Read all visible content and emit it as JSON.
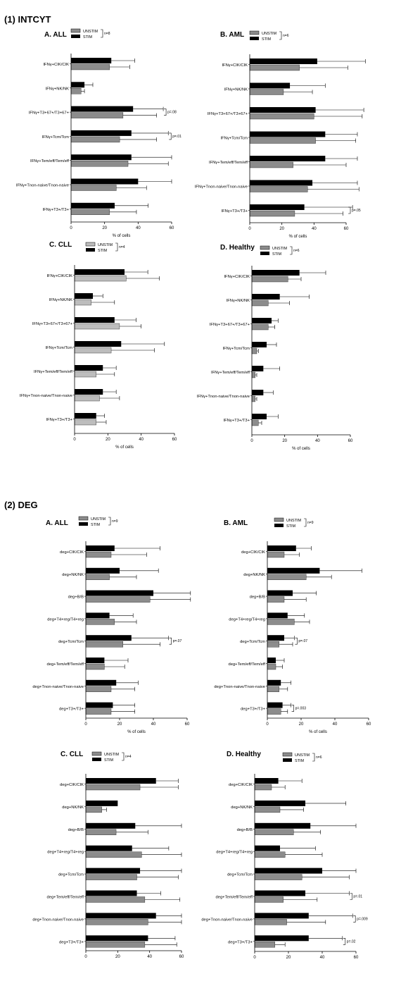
{
  "sections": [
    {
      "title": "(1) INTCYT"
    },
    {
      "title": "(2) DEG"
    }
  ],
  "colors": {
    "stim": "#000000",
    "unstim": "#8c8c8c",
    "unstim_light": "#bdbdbd"
  },
  "chart_data": [
    {
      "type": "bar",
      "section": "(1) INTCYT",
      "title": "A. ALL",
      "legend": {
        "unstim": "UNSTIM",
        "stim": "STIM",
        "n": "n=8"
      },
      "categories": [
        "IFNγ+CIK/CIK",
        "IFNγ+NK/NK",
        "IFNγ+T3+67+/T3+67+",
        "IFNγ+Tcm/Tcm",
        "IFNγ+Tem/eff/Tem/eff",
        "IFNγ+Tnon-naive/Tnon-naive",
        "IFNγ+T3+/T3+"
      ],
      "series": [
        {
          "name": "STIM",
          "values": [
            24,
            8,
            37,
            36,
            36,
            40,
            26
          ],
          "errors": [
            14,
            5,
            18,
            22,
            24,
            20,
            20
          ]
        },
        {
          "name": "UNSTIM",
          "values": [
            23,
            6,
            31,
            29,
            34,
            27,
            23
          ],
          "errors": [
            12,
            2,
            20,
            22,
            24,
            18,
            16
          ]
        }
      ],
      "pvalues": [
        {
          "row": 2,
          "label": "p=.08"
        },
        {
          "row": 3,
          "label": "p=.01"
        }
      ],
      "xlabel": "% of cells",
      "xticks": [
        0,
        20,
        40,
        60
      ],
      "xlim": [
        0,
        60
      ]
    },
    {
      "type": "bar",
      "section": "(1) INTCYT",
      "title": "B. AML",
      "legend": {
        "unstim": "UNSTIM",
        "stim": "STIM",
        "n": "n=6"
      },
      "categories": [
        "IFNγ+CIK/CIK",
        "IFNγ+NK/NK",
        "IFNγ+T3+67+/T3+67+",
        "IFNγ+Tcm/Tcm",
        "IFNγ+Tem/eff/Tem/eff",
        "IFNγ+Tnon-naive/Tnon-naive",
        "IFNγ+T3+/T3+"
      ],
      "series": [
        {
          "name": "STIM",
          "values": [
            42,
            25,
            41,
            47,
            47,
            39,
            34
          ],
          "errors": [
            30,
            22,
            30,
            20,
            20,
            28,
            30
          ]
        },
        {
          "name": "UNSTIM",
          "values": [
            31,
            21,
            40,
            41,
            27,
            36,
            28
          ],
          "errors": [
            30,
            18,
            30,
            25,
            33,
            32,
            30
          ]
        }
      ],
      "pvalues": [
        {
          "row": 6,
          "label": "p=.05"
        }
      ],
      "xlabel": "% of cells",
      "xticks": [
        0,
        20,
        40,
        60
      ],
      "xlim": [
        0,
        60
      ]
    },
    {
      "type": "bar",
      "section": "(1) INTCYT",
      "title": "C. CLL",
      "legend": {
        "unstim": "UNSTIM",
        "stim": "STIM",
        "n": "n=4"
      },
      "categories": [
        "IFNγ+CIK/CIK",
        "IFNγ+NK/NK",
        "IFNγ+T3+67+/T3+67+",
        "IFNγ+Tcm/Tcm",
        "IFNγ+Tem/eff/Tem/eff",
        "IFNγ+Tnon-naive/Tnon-naive",
        "IFNγ+T3+/T3+"
      ],
      "series": [
        {
          "name": "STIM",
          "values": [
            30,
            11,
            24,
            28,
            17,
            17,
            13
          ],
          "errors": [
            14,
            6,
            13,
            26,
            8,
            8,
            5
          ]
        },
        {
          "name": "UNSTIM",
          "values": [
            31,
            10,
            27,
            22,
            13,
            15,
            13
          ],
          "errors": [
            20,
            14,
            13,
            26,
            11,
            12,
            6
          ]
        }
      ],
      "pvalues": [],
      "xlabel": "% of cells",
      "xticks": [
        0,
        20,
        40,
        60
      ],
      "xlim": [
        0,
        60
      ]
    },
    {
      "type": "bar",
      "section": "(1) INTCYT",
      "title": "D. Healthy",
      "legend": {
        "unstim": "UNSTIM",
        "stim": "STIM",
        "n": "n=6"
      },
      "categories": [
        "IFNγ+CIK/CIK",
        "IFNγ+NK/NK",
        "IFNγ+T3+67+/T3+67+",
        "IFNγ+Tcm/Tcm",
        "IFNγ+Tem/eff/Tem/eff",
        "IFNγ+Tnon-naive/Tnon-naive",
        "IFNγ+T3+/T3+"
      ],
      "series": [
        {
          "name": "STIM",
          "values": [
            29,
            17,
            12,
            9,
            7,
            7,
            9
          ],
          "errors": [
            16,
            18,
            4,
            6,
            10,
            6,
            7
          ]
        },
        {
          "name": "UNSTIM",
          "values": [
            22,
            10,
            10,
            3,
            2,
            2,
            4
          ],
          "errors": [
            8,
            13,
            4,
            1,
            1,
            1,
            2
          ]
        }
      ],
      "pvalues": [],
      "xlabel": "% of cells",
      "xticks": [
        0,
        20,
        40,
        60
      ],
      "xlim": [
        0,
        60
      ]
    },
    {
      "type": "bar",
      "section": "(2) DEG",
      "title": "A. ALL",
      "legend": {
        "unstim": "UNSTIM",
        "stim": "STIM",
        "n": "n=9"
      },
      "categories": [
        "deg+CIK/CIK",
        "deg+NK/NK",
        "deg+B/B",
        "deg+T4+reg/T4+reg",
        "deg+Tcm/Tcm",
        "deg+Tem/eff/Tem/eff",
        "deg+Tnon-naive/Tnon-naive",
        "deg+T3+/T3+"
      ],
      "series": [
        {
          "name": "STIM",
          "values": [
            17,
            20,
            40,
            14,
            27,
            11,
            18,
            16
          ],
          "errors": [
            27,
            23,
            22,
            14,
            22,
            14,
            13,
            13
          ]
        },
        {
          "name": "UNSTIM",
          "values": [
            15,
            14,
            38,
            17,
            22,
            11,
            15,
            15
          ],
          "errors": [
            21,
            16,
            24,
            13,
            22,
            12,
            14,
            14
          ]
        }
      ],
      "pvalues": [
        {
          "row": 4,
          "label": "p=.07"
        }
      ],
      "xlabel": "% of cells",
      "xticks": [
        0,
        20,
        40,
        60
      ],
      "xlim": [
        0,
        60
      ]
    },
    {
      "type": "bar",
      "section": "(2) DEG",
      "title": "B. AML",
      "legend": {
        "unstim": "UNSTIM",
        "stim": "STIM",
        "n": "n=9"
      },
      "categories": [
        "deg+CIK/CIK",
        "deg+NK/NK",
        "deg+B/B",
        "deg+T4+reg/T4+reg",
        "deg+Tcm/Tcm",
        "deg+Tem/eff/Tem/eff",
        "deg+Tnon-naive/Tnon-naive",
        "deg+T3+/T3+"
      ],
      "series": [
        {
          "name": "STIM",
          "values": [
            17,
            31,
            15,
            12,
            10,
            5,
            8,
            9
          ],
          "errors": [
            9,
            25,
            14,
            10,
            6,
            5,
            6,
            5
          ]
        },
        {
          "name": "UNSTIM",
          "values": [
            10,
            23,
            10,
            16,
            7,
            5,
            7,
            8
          ],
          "errors": [
            9,
            15,
            13,
            9,
            8,
            4,
            5,
            4
          ]
        }
      ],
      "pvalues": [
        {
          "row": 4,
          "label": "p=.07"
        },
        {
          "row": 7,
          "label": "p=.003"
        }
      ],
      "xlabel": "% of cells",
      "xticks": [
        0,
        20,
        40,
        60
      ],
      "xlim": [
        0,
        60
      ]
    },
    {
      "type": "bar",
      "section": "(2) DEG",
      "title": "C. CLL",
      "legend": {
        "unstim": "UNSTIM",
        "stim": "STIM",
        "n": "n=4"
      },
      "categories": [
        "deg+CIK/CIK",
        "deg+NK/NK",
        "deg+B/B",
        "deg+T4+reg/T4+reg",
        "deg+Tcm/Tcm",
        "deg+Tem/eff/Tem/eff",
        "deg+Tnon-naive/Tnon-naive",
        "deg+T3+/T3+"
      ],
      "series": [
        {
          "name": "STIM",
          "values": [
            44,
            20,
            31,
            29,
            34,
            32,
            44,
            39
          ],
          "errors": [
            14,
            0,
            29,
            23,
            26,
            15,
            16,
            17
          ]
        },
        {
          "name": "UNSTIM",
          "values": [
            34,
            10,
            19,
            35,
            32,
            37,
            39,
            37
          ],
          "errors": [
            24,
            3,
            20,
            25,
            26,
            22,
            21,
            20
          ]
        }
      ],
      "pvalues": [],
      "xlabel": "",
      "xticks": [
        0,
        20,
        40,
        60
      ],
      "xlim": [
        0,
        60
      ]
    },
    {
      "type": "bar",
      "section": "(2) DEG",
      "title": "D. Healthy",
      "legend": {
        "unstim": "UNSTIM",
        "stim": "STIM",
        "n": "n=6"
      },
      "categories": [
        "deg+CIK/CIK",
        "deg+NK/NK",
        "deg+B/B",
        "deg+T4+reg/T4+reg",
        "deg+Tcm/Tcm",
        "deg+Tem/eff/Tem/eff",
        "deg+Tnon-naive/Tnon-naive",
        "deg+T3+/T3+"
      ],
      "series": [
        {
          "name": "STIM",
          "values": [
            14,
            30,
            33,
            15,
            40,
            30,
            32,
            32
          ],
          "errors": [
            14,
            24,
            27,
            21,
            20,
            26,
            26,
            20
          ]
        },
        {
          "name": "UNSTIM",
          "values": [
            10,
            15,
            23,
            18,
            28,
            17,
            19,
            12
          ],
          "errors": [
            8,
            14,
            16,
            22,
            28,
            20,
            23,
            6
          ]
        }
      ],
      "pvalues": [
        {
          "row": 5,
          "label": "p=.01"
        },
        {
          "row": 6,
          "label": "p=.009"
        },
        {
          "row": 7,
          "label": "p=.02"
        }
      ],
      "xlabel": "",
      "xticks": [
        0,
        20,
        40,
        60
      ],
      "xlim": [
        0,
        60
      ]
    }
  ]
}
